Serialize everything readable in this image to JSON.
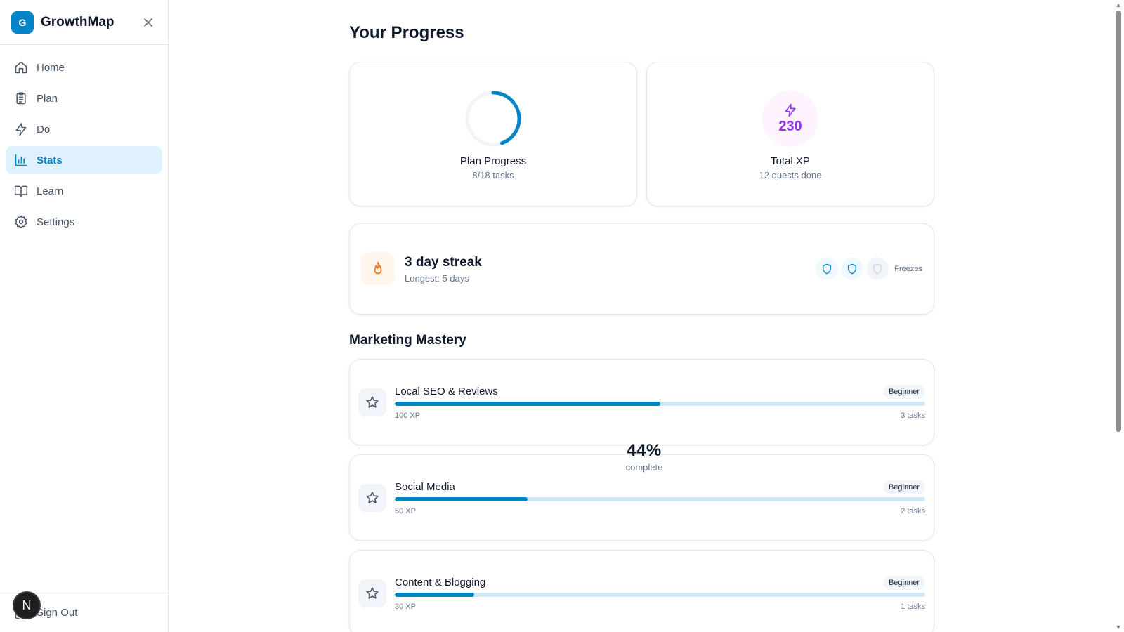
{
  "app": {
    "logo_letter": "G",
    "name": "GrowthMap"
  },
  "sidebar": {
    "items": [
      {
        "label": "Home",
        "icon": "home-icon"
      },
      {
        "label": "Plan",
        "icon": "clipboard-icon"
      },
      {
        "label": "Do",
        "icon": "lightning-icon"
      },
      {
        "label": "Stats",
        "icon": "bar-chart-icon",
        "active": true
      },
      {
        "label": "Learn",
        "icon": "book-icon"
      },
      {
        "label": "Settings",
        "icon": "gear-icon"
      }
    ],
    "sign_out": "Sign Out",
    "avatar_letter": "N"
  },
  "page": {
    "title": "Your Progress"
  },
  "plan_progress": {
    "label": "Plan Progress",
    "sub": "8/18 tasks",
    "completed": 8,
    "total": 18
  },
  "total_xp": {
    "value": "230",
    "label": "Total XP",
    "sub": "12 quests done"
  },
  "streak": {
    "title": "3 day streak",
    "sub": "Longest: 5 days",
    "freezes_label": "Freezes",
    "freezes_available": 2,
    "freezes_total": 3
  },
  "section": {
    "title": "Marketing Mastery"
  },
  "skills": [
    {
      "name": "Local SEO & Reviews",
      "level": "Beginner",
      "xp": "100 XP",
      "tasks": "3 tasks",
      "progress": 0.5
    },
    {
      "name": "Social Media",
      "level": "Beginner",
      "xp": "50 XP",
      "tasks": "2 tasks",
      "progress": 0.25
    },
    {
      "name": "Content & Blogging",
      "level": "Beginner",
      "xp": "30 XP",
      "tasks": "1 tasks",
      "progress": 0.15
    }
  ],
  "overlay": {
    "percent": "44%",
    "label": "complete"
  },
  "colors": {
    "accent": "#0284c7",
    "xp": "#9333ea",
    "streak": "#f97316"
  }
}
